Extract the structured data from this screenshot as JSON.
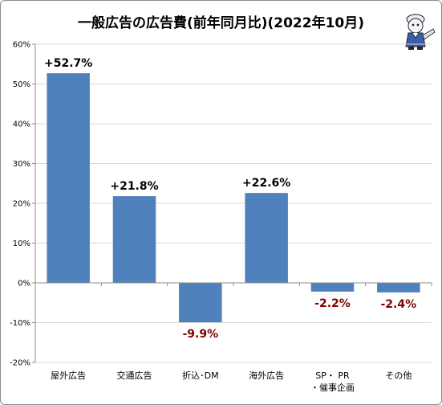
{
  "chart_data": {
    "type": "bar",
    "title": "一般広告の広告費(前年同月比)(2022年10月)",
    "categories": [
      "屋外広告",
      "交通広告",
      "折込･DM",
      "海外広告",
      "SP・PR・催事企画",
      "その他"
    ],
    "category_lines": [
      [
        "屋外広告"
      ],
      [
        "交通広告"
      ],
      [
        "折込･DM"
      ],
      [
        "海外広告"
      ],
      [
        "SP・ PR",
        "・催事企画"
      ],
      [
        "その他"
      ]
    ],
    "values": [
      52.7,
      21.8,
      -9.9,
      22.6,
      -2.2,
      -2.4
    ],
    "data_labels": [
      "+52.7%",
      "+21.8%",
      "-9.9%",
      "+22.6%",
      "-2.2%",
      "-2.4%"
    ],
    "ylim": [
      -20,
      60
    ],
    "yticks": [
      -20,
      -10,
      0,
      10,
      20,
      30,
      40,
      50,
      60
    ],
    "ytick_labels": [
      "-20%",
      "-10%",
      "0%",
      "10%",
      "20%",
      "30%",
      "40%",
      "50%",
      "60%"
    ],
    "xlabel": "",
    "ylabel": "",
    "grid": true,
    "legend": "none",
    "colors": {
      "bar": "#4f81bd",
      "positive_label": "#000000",
      "negative_label": "#7f0000",
      "grid": "#d9d9d9",
      "axis": "#8c8c8c"
    }
  }
}
